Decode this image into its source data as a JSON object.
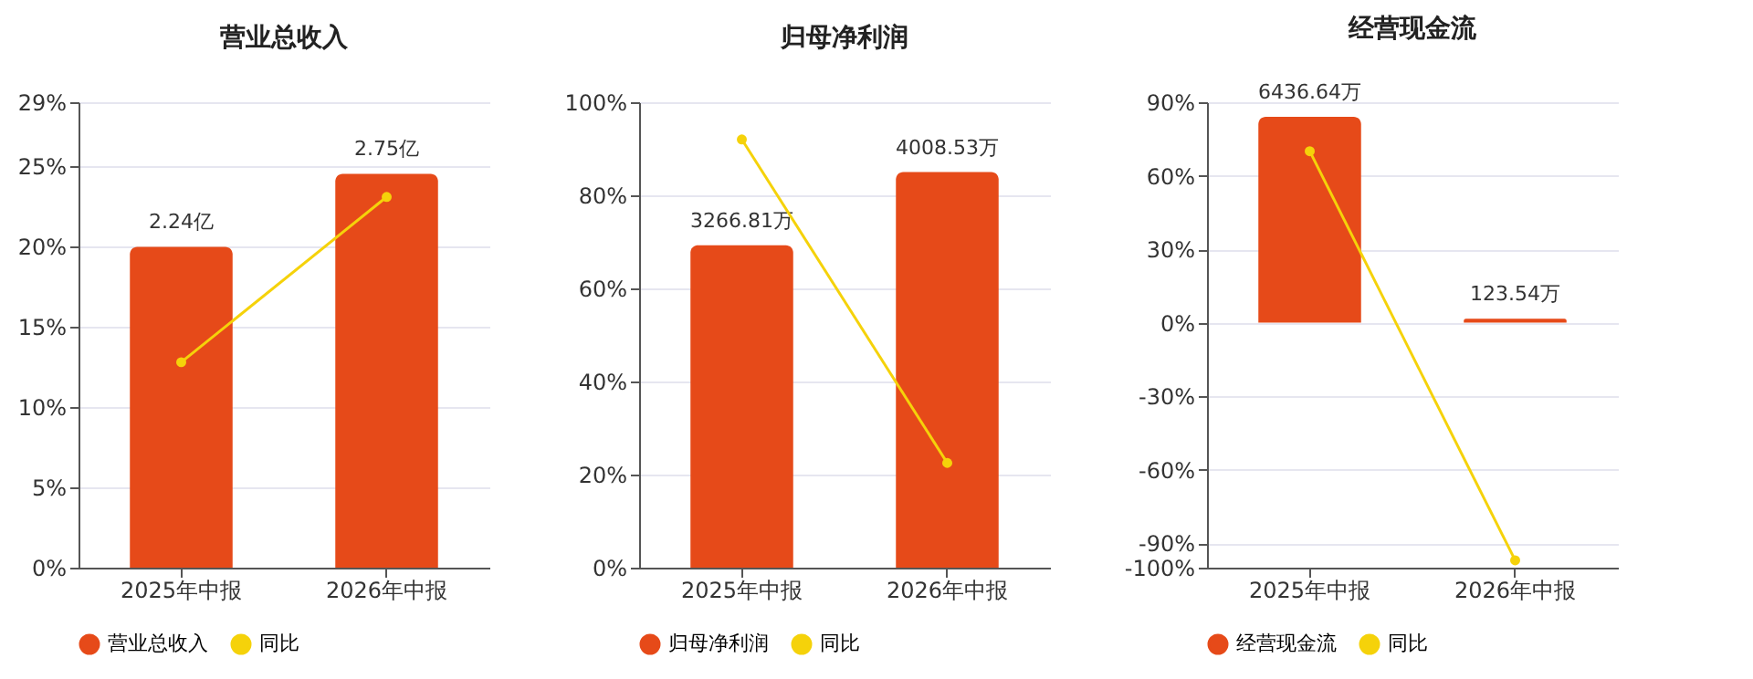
{
  "chart_data": [
    {
      "type": "bar",
      "title": "营业总收入",
      "categories": [
        "2025年中报",
        "2026年中报"
      ],
      "series": [
        {
          "name": "营业总收入",
          "type": "bar",
          "axis": "y2",
          "color": "#e64a19",
          "values": [
            2.24,
            2.75
          ],
          "value_labels": [
            "2.24亿",
            "2.75亿"
          ]
        },
        {
          "name": "同比",
          "type": "line",
          "color": "#f5d20a",
          "values": [
            12.8,
            23.1
          ]
        }
      ],
      "ylim": [
        0,
        29
      ],
      "yticks": [
        {
          "value": 0,
          "label": "0%"
        },
        {
          "value": 5,
          "label": "5%"
        },
        {
          "value": 10,
          "label": "10%"
        },
        {
          "value": 15,
          "label": "15%"
        },
        {
          "value": 20,
          "label": "20%"
        },
        {
          "value": 25,
          "label": "25%"
        },
        {
          "value": 29,
          "label": "29%"
        }
      ],
      "y2lim": [
        0,
        3.25
      ],
      "grid": "y",
      "legend": "bottom",
      "marker": "circle"
    },
    {
      "type": "bar",
      "title": "归母净利润",
      "categories": [
        "2025年中报",
        "2026年中报"
      ],
      "series": [
        {
          "name": "归母净利润",
          "type": "bar",
          "axis": "y2",
          "color": "#e64a19",
          "values": [
            3266.81,
            4008.53
          ],
          "value_labels": [
            "3266.81万",
            "4008.53万"
          ]
        },
        {
          "name": "同比",
          "type": "line",
          "color": "#f5d20a",
          "values": [
            92,
            22.5
          ]
        }
      ],
      "ylim": [
        0,
        100
      ],
      "yticks": [
        {
          "value": 0,
          "label": "0%"
        },
        {
          "value": 20,
          "label": "20%"
        },
        {
          "value": 40,
          "label": "40%"
        },
        {
          "value": 60,
          "label": "60%"
        },
        {
          "value": 80,
          "label": "80%"
        },
        {
          "value": 100,
          "label": "100%"
        }
      ],
      "y2lim": [
        0,
        4716
      ],
      "grid": "y",
      "legend": "bottom",
      "marker": "circle"
    },
    {
      "type": "bar",
      "title": "经营现金流",
      "categories": [
        "2025年中报",
        "2026年中报"
      ],
      "series": [
        {
          "name": "经营现金流",
          "type": "bar",
          "axis": "y2",
          "color": "#e64a19",
          "values": [
            6436.64,
            123.54
          ],
          "value_labels": [
            "6436.64万",
            "123.54万"
          ]
        },
        {
          "name": "同比",
          "type": "line",
          "color": "#f5d20a",
          "values": [
            70,
            -97
          ]
        }
      ],
      "ylim": [
        -100,
        90
      ],
      "yticks": [
        {
          "value": -100,
          "label": "-100%"
        },
        {
          "value": -90,
          "label": "-90%"
        },
        {
          "value": -60,
          "label": "-60%"
        },
        {
          "value": -30,
          "label": "-30%"
        },
        {
          "value": 0,
          "label": "0%"
        },
        {
          "value": 30,
          "label": "30%"
        },
        {
          "value": 60,
          "label": "60%"
        },
        {
          "value": 90,
          "label": "90%"
        }
      ],
      "y2lim": [
        -7660,
        6895
      ],
      "grid": "y",
      "legend": "bottom",
      "marker": "circle"
    }
  ]
}
